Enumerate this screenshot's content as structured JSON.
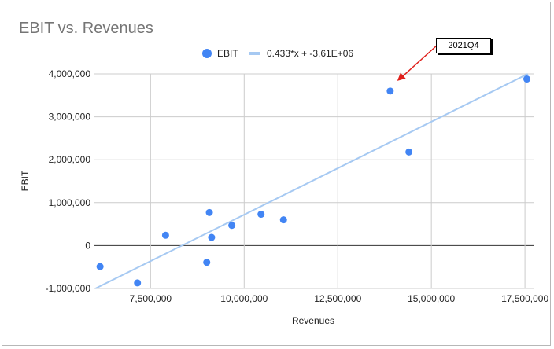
{
  "chart_data": {
    "type": "scatter",
    "title": "EBIT vs. Revenues",
    "xlabel": "Revenues",
    "ylabel": "EBIT",
    "xlim": [
      6000000,
      17750000
    ],
    "ylim": [
      -1000000,
      4000000
    ],
    "x_ticks": [
      "7,500,000",
      "10,000,000",
      "12,500,000",
      "15,000,000",
      "17,500,000"
    ],
    "y_ticks": [
      "-1,000,000",
      "0",
      "1,000,000",
      "2,000,000",
      "3,000,000",
      "4,000,000"
    ],
    "grid": true,
    "legend_position": "top",
    "series": [
      {
        "name": "EBIT",
        "color": "#4285f4",
        "points": [
          {
            "x": 6150000,
            "y": -490000
          },
          {
            "x": 7150000,
            "y": -870000
          },
          {
            "x": 7900000,
            "y": 240000
          },
          {
            "x": 9000000,
            "y": -390000
          },
          {
            "x": 9070000,
            "y": 770000
          },
          {
            "x": 9130000,
            "y": 190000
          },
          {
            "x": 9670000,
            "y": 470000
          },
          {
            "x": 10450000,
            "y": 730000
          },
          {
            "x": 11050000,
            "y": 600000
          },
          {
            "x": 13900000,
            "y": 3600000
          },
          {
            "x": 14400000,
            "y": 2180000
          },
          {
            "x": 17550000,
            "y": 3880000
          }
        ]
      }
    ],
    "trendline": {
      "name": "0.433*x + -3.61E+06",
      "slope": 0.433,
      "intercept": -3610000,
      "color": "#a6c9f2"
    },
    "annotation": {
      "text": "2021Q4",
      "target": {
        "x": 13900000,
        "y": 3600000
      },
      "color": "#e0201b"
    }
  }
}
